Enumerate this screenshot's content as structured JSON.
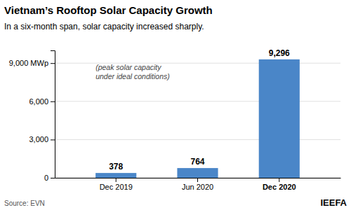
{
  "chart_data": {
    "type": "bar",
    "title": "Vietnam’s Rooftop Solar Capacity Growth",
    "subtitle": "In a six-month span, solar capacity increased sharply.",
    "annotation": "(peak solar capacity\nunder ideal conditions)",
    "source": "Source: EVN",
    "brand": "IEEFA",
    "categories": [
      "Dec 2019",
      "Jun 2020",
      "Dec 2020"
    ],
    "values": [
      378,
      764,
      9296
    ],
    "value_labels": [
      "378",
      "764",
      "9,296"
    ],
    "data_labels": true,
    "color": "#4a86c8",
    "ylim": [
      0,
      10000
    ],
    "yticks": [
      0,
      {
        "value": 3000,
        "label": "3,000"
      },
      {
        "value": 6000,
        "label": "6,000"
      },
      {
        "value": 9000,
        "label": "9,000 MWp"
      }
    ],
    "grid": true
  }
}
